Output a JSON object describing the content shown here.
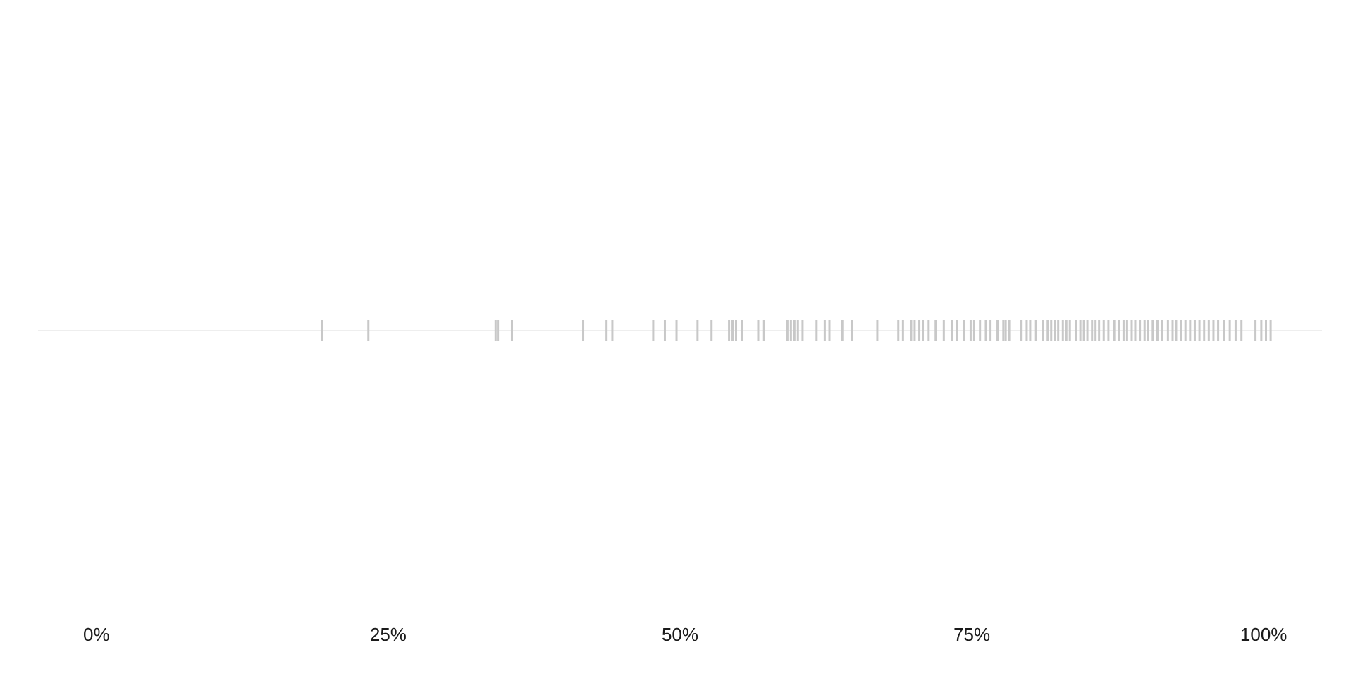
{
  "chart_data": {
    "type": "rug",
    "title": "",
    "xlabel": "",
    "ylabel": "",
    "xlim": [
      -0.05,
      1.05
    ],
    "grid": false,
    "legend": "none",
    "colors": {
      "mark": "#c8c8c8",
      "baseline": "#eeeeee",
      "text": "#1a1a1a"
    },
    "x_ticks": [
      {
        "value": 0.0,
        "label": "0%"
      },
      {
        "value": 0.25,
        "label": "25%"
      },
      {
        "value": 0.5,
        "label": "50%"
      },
      {
        "value": 0.75,
        "label": "75%"
      },
      {
        "value": 1.0,
        "label": "100%"
      }
    ],
    "values": [
      0.193,
      0.233,
      0.342,
      0.344,
      0.356,
      0.417,
      0.437,
      0.442,
      0.477,
      0.487,
      0.497,
      0.515,
      0.527,
      0.542,
      0.545,
      0.548,
      0.553,
      0.567,
      0.572,
      0.592,
      0.595,
      0.598,
      0.601,
      0.605,
      0.617,
      0.624,
      0.628,
      0.639,
      0.647,
      0.669,
      0.687,
      0.691,
      0.698,
      0.701,
      0.705,
      0.708,
      0.713,
      0.719,
      0.726,
      0.733,
      0.737,
      0.743,
      0.749,
      0.752,
      0.757,
      0.762,
      0.766,
      0.772,
      0.777,
      0.779,
      0.782,
      0.792,
      0.797,
      0.8,
      0.805,
      0.811,
      0.815,
      0.818,
      0.821,
      0.824,
      0.828,
      0.831,
      0.834,
      0.839,
      0.843,
      0.846,
      0.849,
      0.853,
      0.856,
      0.859,
      0.863,
      0.867,
      0.872,
      0.876,
      0.88,
      0.883,
      0.887,
      0.89,
      0.894,
      0.898,
      0.901,
      0.905,
      0.909,
      0.913,
      0.918,
      0.922,
      0.925,
      0.929,
      0.933,
      0.937,
      0.941,
      0.945,
      0.949,
      0.953,
      0.957,
      0.961,
      0.966,
      0.971,
      0.976,
      0.981,
      0.993,
      0.998,
      1.002,
      1.006
    ]
  }
}
